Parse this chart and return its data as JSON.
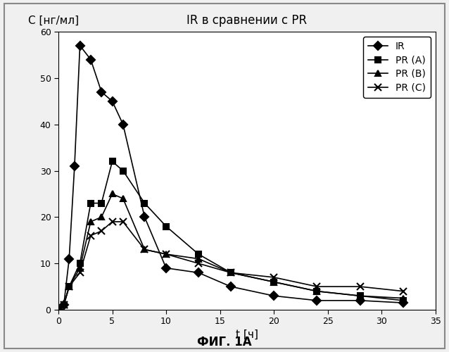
{
  "title": "IR в сравнении с PR",
  "xlabel": "t [ч]",
  "ylabel": "С [нг/мл]",
  "xlim": [
    0,
    35
  ],
  "ylim": [
    0,
    60
  ],
  "xticks": [
    0,
    5,
    10,
    15,
    20,
    25,
    30,
    35
  ],
  "yticks": [
    0,
    10,
    20,
    30,
    40,
    50,
    60
  ],
  "footnote": "ФИГ. 1А",
  "series": [
    {
      "label": "IR",
      "marker": "D",
      "markersize": 6,
      "color": "#000000",
      "x": [
        0,
        0.5,
        1,
        1.5,
        2,
        3,
        4,
        5,
        6,
        8,
        10,
        13,
        16,
        20,
        24,
        28,
        32
      ],
      "y": [
        0,
        1,
        11,
        31,
        57,
        54,
        47,
        45,
        40,
        20,
        9,
        8,
        5,
        3,
        2,
        2,
        1.5
      ]
    },
    {
      "label": "PR (A)",
      "marker": "s",
      "markersize": 6,
      "color": "#000000",
      "x": [
        0,
        0.5,
        1,
        2,
        3,
        4,
        5,
        6,
        8,
        10,
        13,
        16,
        20,
        24,
        28,
        32
      ],
      "y": [
        0,
        1,
        5,
        10,
        23,
        23,
        32,
        30,
        23,
        18,
        12,
        8,
        6,
        4,
        3,
        2
      ]
    },
    {
      "label": "PR (B)",
      "marker": "^",
      "markersize": 6,
      "color": "#000000",
      "x": [
        0,
        0.5,
        1,
        2,
        3,
        4,
        5,
        6,
        8,
        10,
        13,
        16,
        20,
        24,
        28,
        32
      ],
      "y": [
        0,
        1,
        5,
        9,
        19,
        20,
        25,
        24,
        13,
        12,
        11,
        8,
        6,
        4,
        3,
        2.5
      ]
    },
    {
      "label": "PR (C)",
      "marker": "x",
      "markersize": 7,
      "color": "#000000",
      "x": [
        0,
        0.5,
        1,
        2,
        3,
        4,
        5,
        6,
        8,
        10,
        13,
        16,
        20,
        24,
        28,
        32
      ],
      "y": [
        0,
        1,
        5,
        8,
        16,
        17,
        19,
        19,
        13,
        12,
        10,
        8,
        7,
        5,
        5,
        4
      ]
    }
  ],
  "background_color": "#f0f0f0",
  "plot_background": "#ffffff",
  "line_color": "#000000",
  "linewidth": 1.2,
  "markerfacecolor": "#000000",
  "border_color": "#aaaaaa"
}
